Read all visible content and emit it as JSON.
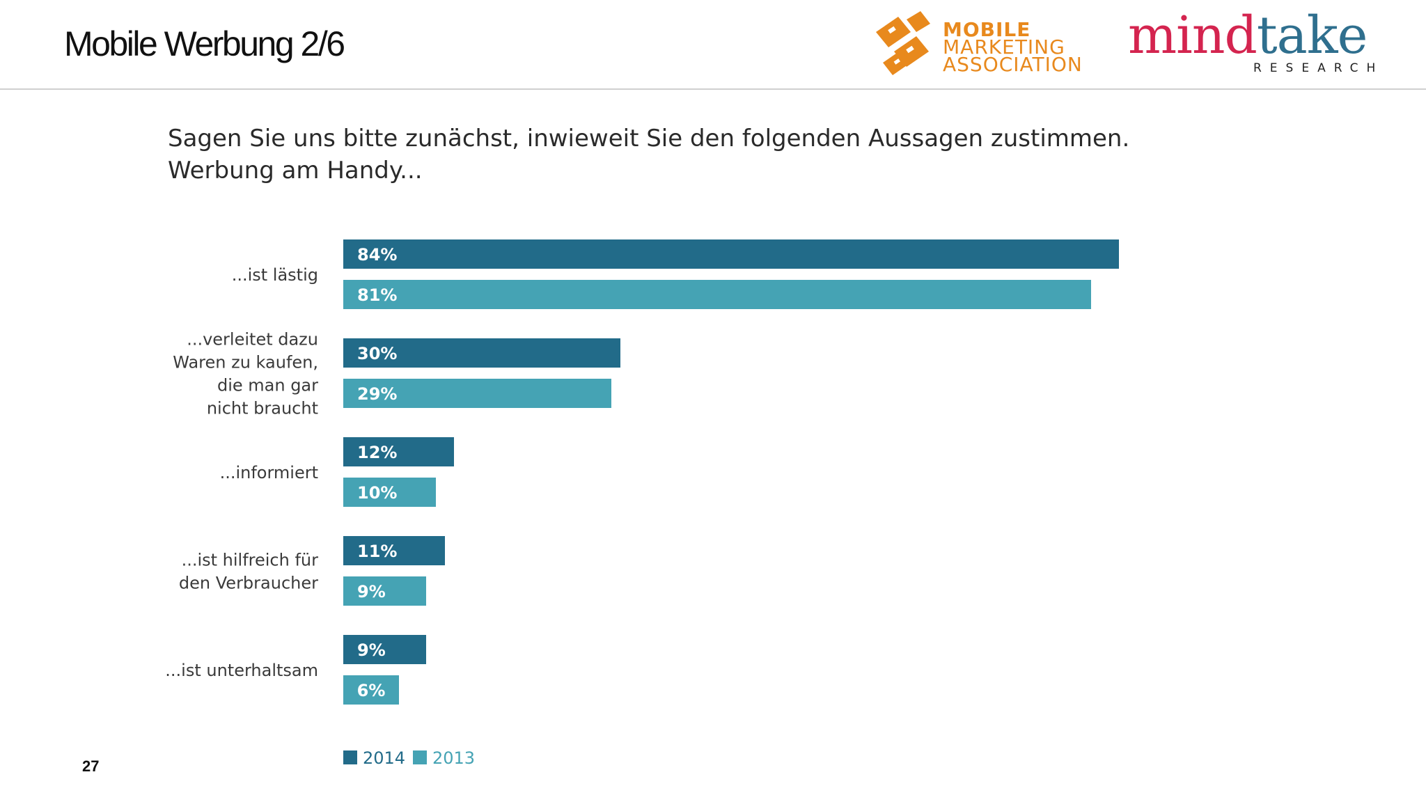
{
  "slide": {
    "title": "Mobile Werbung 2/6",
    "page_number": "27",
    "question_line1": "Sagen Sie uns bitte zunächst, inwieweit Sie den folgenden Aussagen zustimmen.",
    "question_line2": "Werbung am Handy..."
  },
  "logos": {
    "mma": {
      "line1": "MOBILE",
      "line2": "MARKETING",
      "line3": "ASSOCIATION",
      "color": "#e8891d"
    },
    "mindtake": {
      "word_part1": "mind",
      "word_part2": "take",
      "subline": "RESEARCH",
      "color1": "#d4244f",
      "color2": "#2f6f8e"
    }
  },
  "chart_data": {
    "type": "bar",
    "orientation": "horizontal",
    "categories": [
      [
        "...ist lästig"
      ],
      [
        "...verleitet dazu",
        "Waren zu kaufen,",
        "die man gar",
        "nicht braucht"
      ],
      [
        "...informiert"
      ],
      [
        "...ist hilfreich für",
        "den Verbraucher"
      ],
      [
        "...ist unterhaltsam"
      ]
    ],
    "series": [
      {
        "name": "2014",
        "color": "#226b89",
        "values": [
          84,
          30,
          12,
          11,
          9
        ]
      },
      {
        "name": "2013",
        "color": "#45a3b4",
        "values": [
          81,
          29,
          10,
          9,
          6
        ]
      }
    ],
    "value_suffix": "%",
    "xlim": [
      0,
      84
    ],
    "legend_position": "bottom-left",
    "grid": false
  }
}
